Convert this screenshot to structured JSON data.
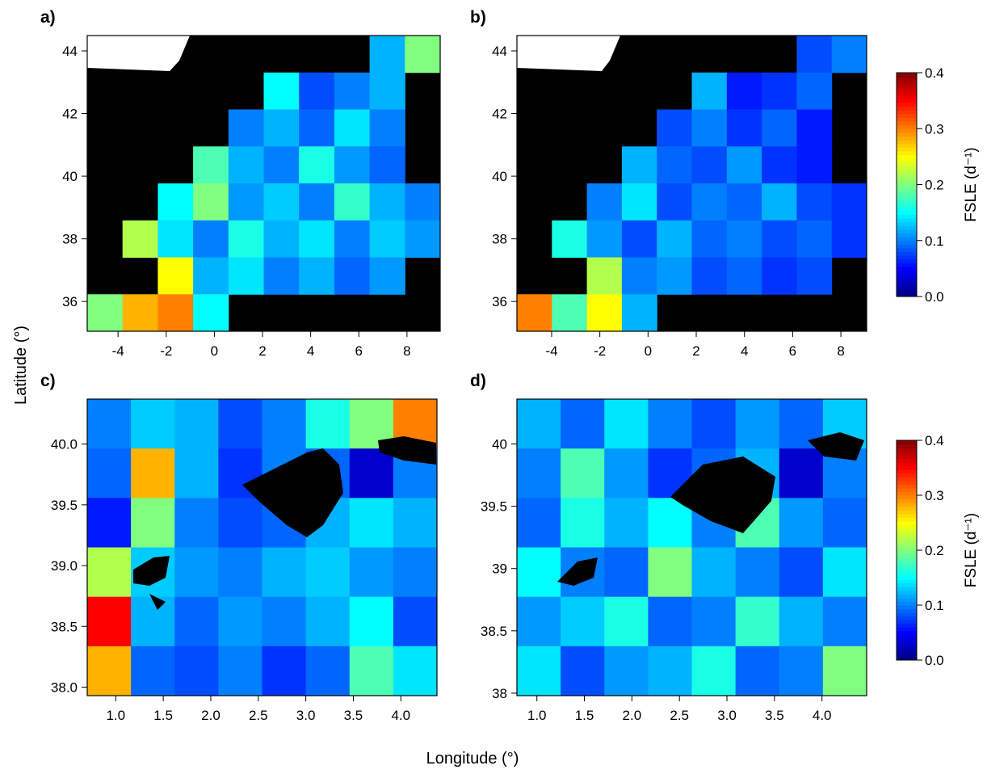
{
  "xlabel": "Longitude (°)",
  "ylabel": "Latitude (°)",
  "chart_data": [
    {
      "type": "heatmap",
      "label": "a)",
      "xlim": [
        -5.28,
        9.38
      ],
      "ylim": [
        35.05,
        44.49
      ],
      "zlim": [
        0,
        0.4
      ],
      "xticks": [
        -4,
        -2,
        0,
        2,
        4,
        6,
        8
      ],
      "yticks": [
        36,
        38,
        40,
        42,
        44
      ],
      "z": [
        [
          null,
          null,
          null,
          null,
          null,
          null,
          null,
          null,
          0.12,
          0.2
        ],
        [
          null,
          null,
          null,
          null,
          null,
          0.15,
          0.08,
          0.1,
          0.12,
          null
        ],
        [
          null,
          null,
          null,
          null,
          0.1,
          0.12,
          0.09,
          0.14,
          0.1,
          null
        ],
        [
          null,
          null,
          null,
          0.18,
          0.12,
          0.1,
          0.16,
          0.11,
          0.09,
          null
        ],
        [
          null,
          null,
          0.15,
          0.2,
          0.11,
          0.13,
          0.1,
          0.17,
          0.12,
          0.1
        ],
        [
          null,
          0.22,
          0.14,
          0.1,
          0.16,
          0.12,
          0.14,
          0.1,
          0.13,
          0.11
        ],
        [
          null,
          null,
          0.25,
          0.12,
          0.14,
          0.1,
          0.12,
          0.09,
          0.11,
          null
        ],
        [
          0.2,
          0.28,
          0.3,
          0.15,
          null,
          null,
          null,
          null,
          null,
          null
        ]
      ]
    },
    {
      "type": "heatmap",
      "label": "b)",
      "xlim": [
        -5.44,
        9.07
      ],
      "ylim": [
        35.05,
        44.49
      ],
      "zlim": [
        0,
        0.4
      ],
      "xticks": [
        -4,
        -2,
        0,
        2,
        4,
        6,
        8
      ],
      "yticks": [
        36,
        38,
        40,
        42,
        44
      ],
      "colorbar": {
        "label": "FSLE (d⁻¹)",
        "ticks": [
          {
            "value": 0,
            "label": "0.0"
          },
          0.1,
          0.2,
          0.3,
          0.4
        ]
      },
      "z": [
        [
          null,
          null,
          null,
          null,
          null,
          null,
          null,
          null,
          0.08,
          0.1
        ],
        [
          null,
          null,
          null,
          null,
          null,
          0.12,
          0.06,
          0.07,
          0.09,
          null
        ],
        [
          null,
          null,
          null,
          null,
          0.08,
          0.1,
          0.07,
          0.09,
          0.06,
          null
        ],
        [
          null,
          null,
          null,
          0.12,
          0.09,
          0.08,
          0.11,
          0.07,
          0.06,
          null
        ],
        [
          null,
          null,
          0.1,
          0.14,
          0.08,
          0.1,
          0.09,
          0.12,
          0.08,
          0.07
        ],
        [
          null,
          0.16,
          0.11,
          0.08,
          0.12,
          0.09,
          0.1,
          0.08,
          0.09,
          0.07
        ],
        [
          null,
          null,
          0.22,
          0.1,
          0.11,
          0.08,
          0.09,
          0.07,
          0.08,
          null
        ],
        [
          0.3,
          0.18,
          0.25,
          0.12,
          null,
          null,
          null,
          null,
          null,
          null
        ]
      ]
    },
    {
      "type": "heatmap",
      "label": "c)",
      "xlim": [
        0.7,
        4.38
      ],
      "ylim": [
        37.93,
        40.37
      ],
      "zlim": [
        0,
        0.4
      ],
      "xticks": [
        {
          "value": 1,
          "label": "1.0"
        },
        1.5,
        {
          "value": 2,
          "label": "2.0"
        },
        2.5,
        {
          "value": 3,
          "label": "3.0"
        },
        3.5,
        {
          "value": 4,
          "label": "4.0"
        }
      ],
      "yticks": [
        {
          "value": 38,
          "label": "38.0"
        },
        38.5,
        {
          "value": 39,
          "label": "39.0"
        },
        39.5,
        {
          "value": 40,
          "label": "40.0"
        }
      ],
      "z": [
        [
          0.1,
          0.13,
          0.12,
          0.08,
          0.1,
          0.16,
          0.2,
          0.3
        ],
        [
          0.09,
          0.28,
          0.12,
          0.07,
          0.1,
          0.09,
          0.03,
          0.1
        ],
        [
          0.06,
          0.2,
          0.1,
          0.08,
          0.09,
          0.12,
          0.14,
          0.12
        ],
        [
          0.22,
          0.13,
          0.11,
          0.1,
          0.12,
          0.13,
          0.11,
          0.1
        ],
        [
          0.35,
          0.12,
          0.09,
          0.11,
          0.1,
          0.12,
          0.15,
          0.08
        ],
        [
          0.28,
          0.09,
          0.08,
          0.1,
          0.07,
          0.09,
          0.18,
          0.14
        ]
      ]
    },
    {
      "type": "heatmap",
      "label": "d)",
      "xlim": [
        0.79,
        4.47
      ],
      "ylim": [
        37.98,
        40.36
      ],
      "zlim": [
        0,
        0.4
      ],
      "xticks": [
        {
          "value": 1,
          "label": "1.0"
        },
        1.5,
        {
          "value": 2,
          "label": "2.0"
        },
        2.5,
        {
          "value": 3,
          "label": "3.0"
        },
        3.5,
        {
          "value": 4,
          "label": "4.0"
        }
      ],
      "yticks": [
        38,
        38.5,
        39,
        39.5,
        40
      ],
      "colorbar": {
        "label": "FSLE (d⁻¹)",
        "ticks": [
          {
            "value": 0,
            "label": "0.0"
          },
          0.1,
          0.2,
          0.3,
          0.4
        ]
      },
      "z": [
        [
          0.12,
          0.09,
          0.14,
          0.1,
          0.08,
          0.11,
          0.09,
          0.13
        ],
        [
          0.1,
          0.18,
          0.11,
          0.07,
          0.09,
          0.12,
          0.03,
          0.1
        ],
        [
          0.09,
          0.16,
          0.12,
          0.15,
          0.1,
          0.18,
          0.11,
          0.09
        ],
        [
          0.15,
          0.1,
          0.09,
          0.2,
          0.12,
          0.1,
          0.08,
          0.14
        ],
        [
          0.11,
          0.13,
          0.16,
          0.09,
          0.1,
          0.17,
          0.12,
          0.1
        ],
        [
          0.14,
          0.08,
          0.11,
          0.12,
          0.16,
          0.09,
          0.1,
          0.2
        ]
      ]
    }
  ]
}
